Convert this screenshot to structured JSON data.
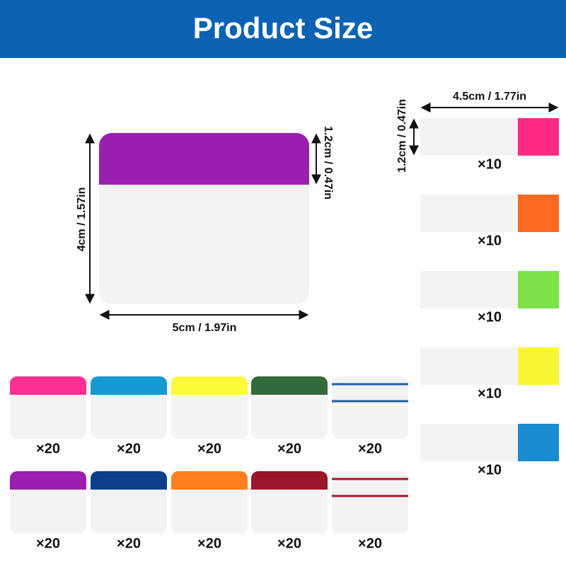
{
  "header": {
    "title": "Product Size"
  },
  "large_tab": {
    "height_label": "4cm / 1.57in",
    "top_height_label": "1.2cm / 0.47in",
    "width_label": "5cm / 1.97in"
  },
  "strip_tabs": {
    "width_label": "4.5cm / 1.77in",
    "height_label": "1.2cm / 0.47in",
    "items": [
      {
        "quantity": "×10"
      },
      {
        "quantity": "×10"
      },
      {
        "quantity": "×10"
      },
      {
        "quantity": "×10"
      },
      {
        "quantity": "×10"
      }
    ]
  },
  "square_tabs": {
    "items": [
      {
        "quantity": "×20"
      },
      {
        "quantity": "×20"
      },
      {
        "quantity": "×20"
      },
      {
        "quantity": "×20"
      },
      {
        "quantity": "×20"
      },
      {
        "quantity": "×20"
      },
      {
        "quantity": "×20"
      },
      {
        "quantity": "×20"
      },
      {
        "quantity": "×20"
      },
      {
        "quantity": "×20"
      }
    ]
  }
}
